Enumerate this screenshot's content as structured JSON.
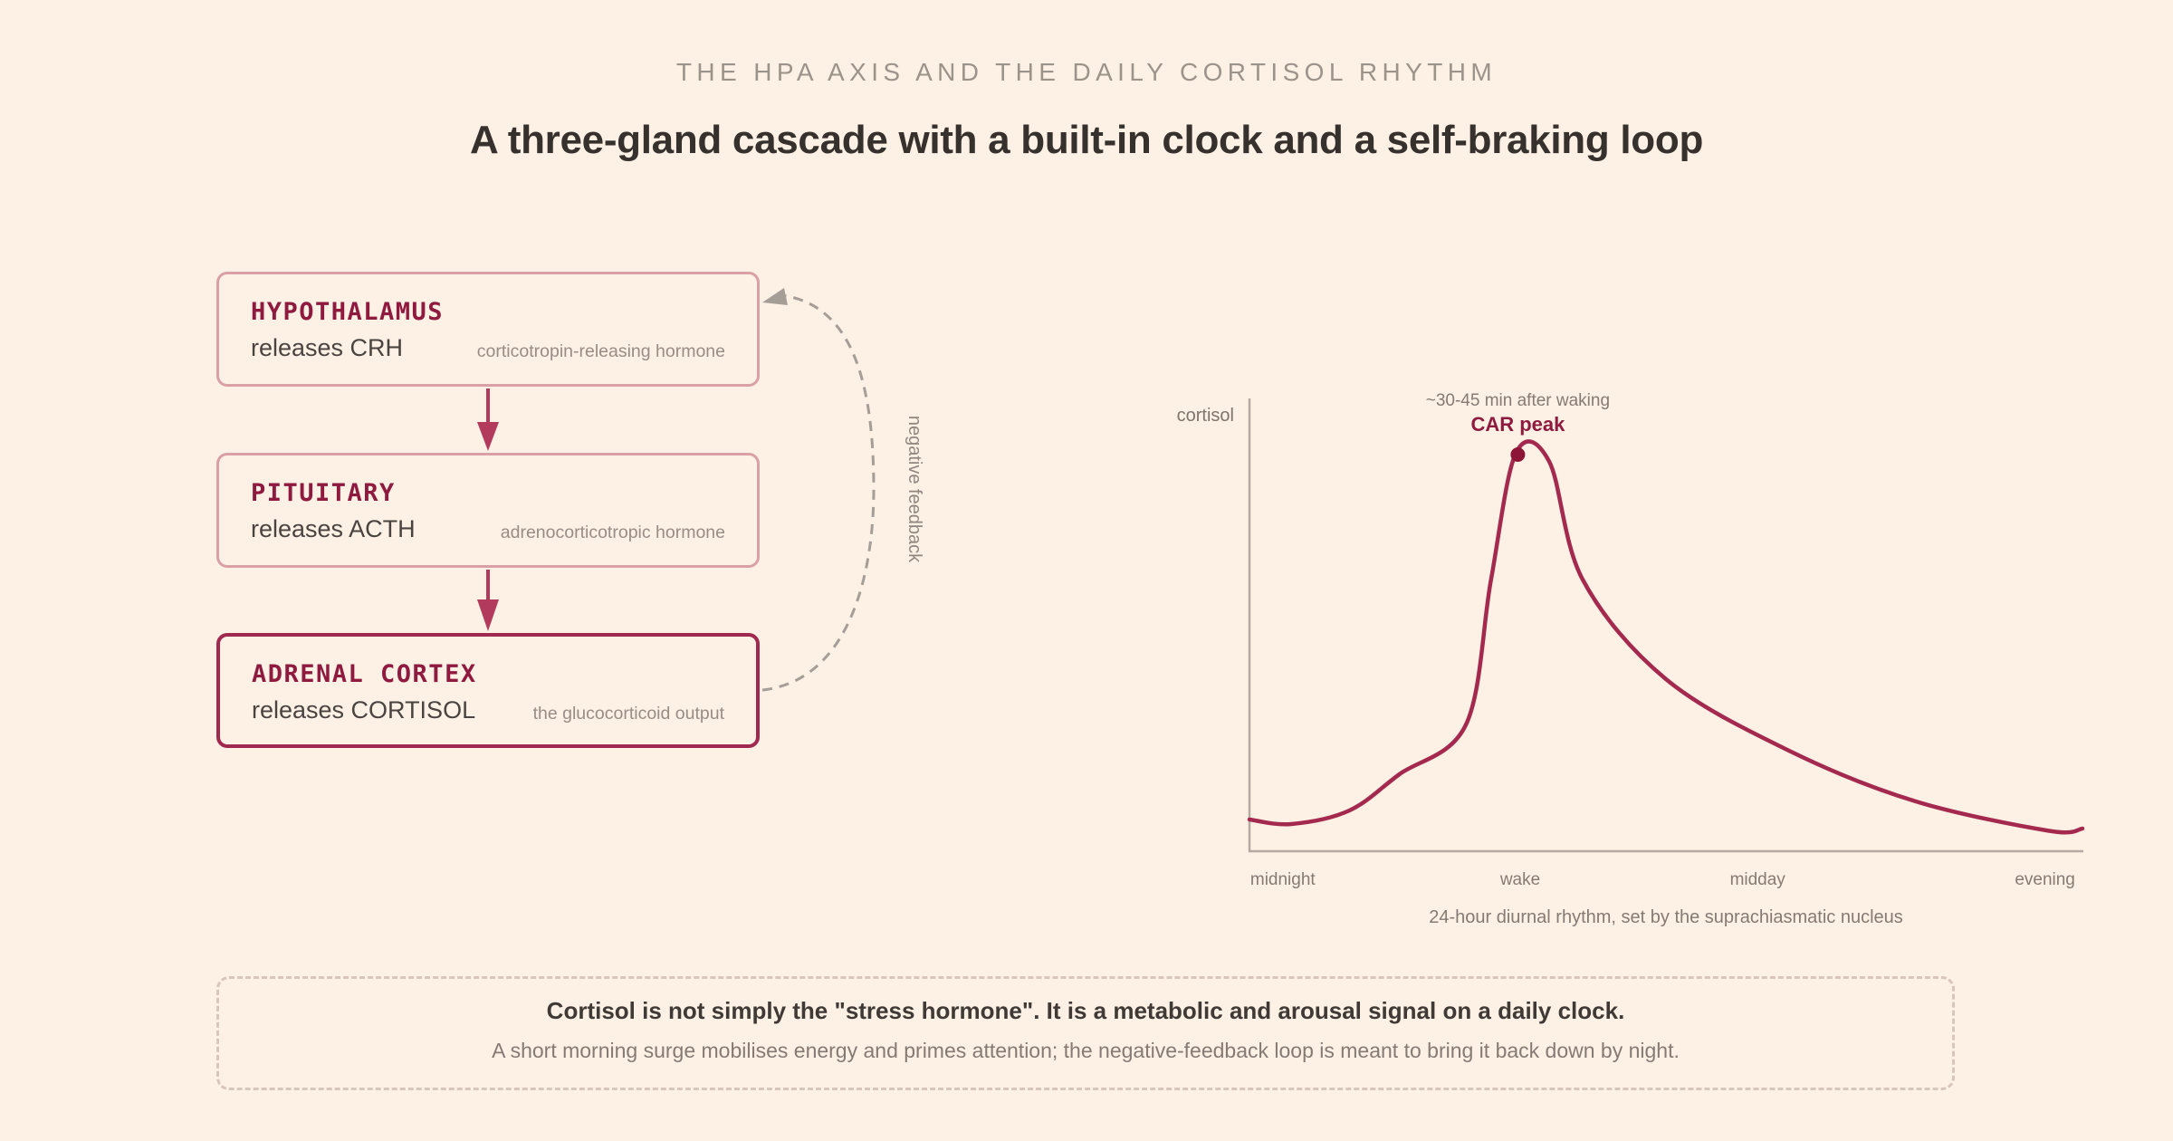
{
  "header": {
    "eyebrow": "THE HPA AXIS AND THE DAILY CORTISOL RHYTHM",
    "title": "A three-gland cascade with a built-in clock and a self-braking loop"
  },
  "cascade": {
    "glands": [
      {
        "name": "HYPOTHALAMUS",
        "release": "releases CRH",
        "desc": "corticotropin-releasing hormone"
      },
      {
        "name": "PITUITARY",
        "release": "releases ACTH",
        "desc": "adrenocorticotropic hormone"
      },
      {
        "name": "ADRENAL CORTEX",
        "release": "releases CORTISOL",
        "desc": "the glucocorticoid output"
      }
    ],
    "feedback_label": "negative feedback"
  },
  "chart_data": {
    "type": "line",
    "ylabel": "cortisol",
    "x_ticks": [
      "midnight",
      "wake",
      "midday",
      "evening"
    ],
    "caption": "24-hour diurnal rhythm, set by the suprachiasmatic nucleus",
    "peak_label": "CAR peak",
    "peak_note": "~30-45 min after waking",
    "series": [
      {
        "points": [
          [
            0,
            0.07
          ],
          [
            0.05,
            0.06
          ],
          [
            0.12,
            0.09
          ],
          [
            0.18,
            0.17
          ],
          [
            0.26,
            0.28
          ],
          [
            0.29,
            0.6
          ],
          [
            0.32,
            0.88
          ],
          [
            0.36,
            0.86
          ],
          [
            0.4,
            0.6
          ],
          [
            0.5,
            0.38
          ],
          [
            0.65,
            0.22
          ],
          [
            0.8,
            0.11
          ],
          [
            0.96,
            0.045
          ],
          [
            1.0,
            0.05
          ]
        ]
      }
    ],
    "line_color": "#a3294f",
    "peak_color": "#8c1538"
  },
  "note": {
    "main": "Cortisol is not simply the \"stress hormone\". It is a metabolic and arousal signal on a daily clock.",
    "sub": "A short morning surge mobilises energy and primes attention; the negative-feedback loop is meant to bring it back down by night."
  },
  "colors": {
    "background": "#fdf0e5",
    "accent": "#8f1a3f",
    "arrow": "#b23a5c"
  }
}
